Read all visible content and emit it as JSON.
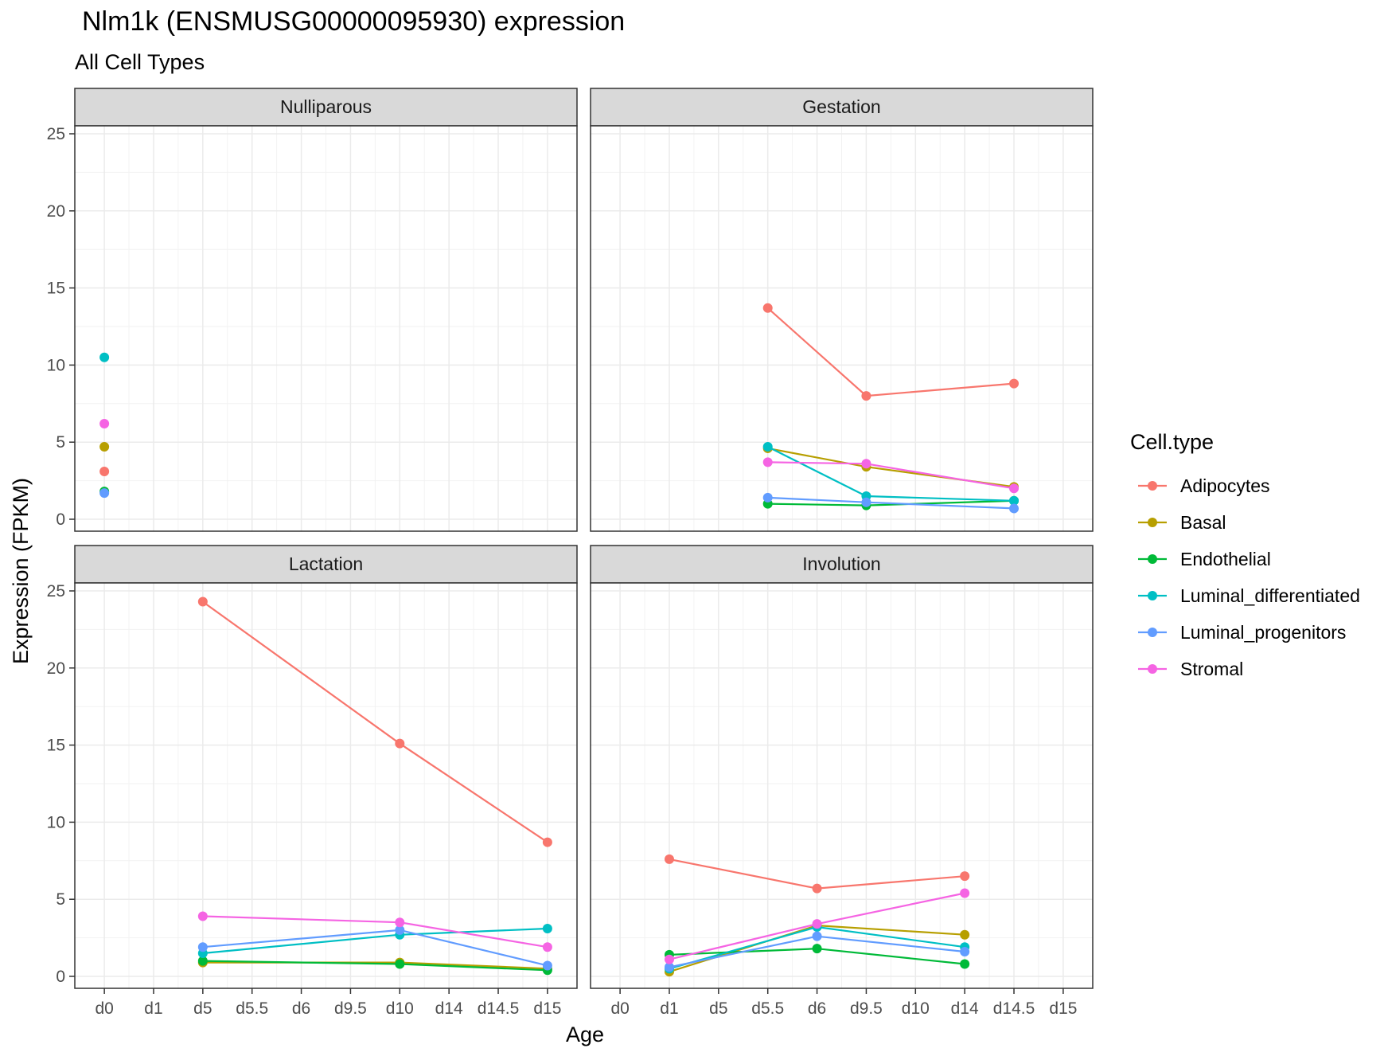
{
  "chart_data": {
    "type": "line",
    "title": "Nlm1k (ENSMUSG00000095930) expression",
    "subtitle": "All Cell Types",
    "xlabel": "Age",
    "ylabel": "Expression (FPKM)",
    "ylim": [
      0,
      25
    ],
    "y_ticks": [
      0,
      5,
      10,
      15,
      20,
      25
    ],
    "x_categories": [
      "d0",
      "d1",
      "d5",
      "d5.5",
      "d6",
      "d9.5",
      "d10",
      "d14",
      "d14.5",
      "d15"
    ],
    "grid": true,
    "legend": {
      "title": "Cell.type",
      "position": "right",
      "entries": [
        "Adipocytes",
        "Basal",
        "Endothelial",
        "Luminal_differentiated",
        "Luminal_progenitors",
        "Stromal"
      ]
    },
    "colors": {
      "Adipocytes": "#F8766D",
      "Basal": "#B79F00",
      "Endothelial": "#00BA38",
      "Luminal_differentiated": "#00BFC4",
      "Luminal_progenitors": "#619CFF",
      "Stromal": "#F564E3"
    },
    "panels": [
      {
        "name": "Nulliparous",
        "series": [
          {
            "name": "Adipocytes",
            "points": [
              [
                "d0",
                3.1
              ]
            ]
          },
          {
            "name": "Basal",
            "points": [
              [
                "d0",
                4.7
              ]
            ]
          },
          {
            "name": "Endothelial",
            "points": [
              [
                "d0",
                1.8
              ]
            ]
          },
          {
            "name": "Luminal_differentiated",
            "points": [
              [
                "d0",
                10.5
              ]
            ]
          },
          {
            "name": "Luminal_progenitors",
            "points": [
              [
                "d0",
                1.7
              ]
            ]
          },
          {
            "name": "Stromal",
            "points": [
              [
                "d0",
                6.2
              ]
            ]
          }
        ]
      },
      {
        "name": "Gestation",
        "series": [
          {
            "name": "Adipocytes",
            "points": [
              [
                "d5.5",
                13.7
              ],
              [
                "d9.5",
                8.0
              ],
              [
                "d14.5",
                8.8
              ]
            ]
          },
          {
            "name": "Basal",
            "points": [
              [
                "d5.5",
                4.6
              ],
              [
                "d9.5",
                3.4
              ],
              [
                "d14.5",
                2.1
              ]
            ]
          },
          {
            "name": "Endothelial",
            "points": [
              [
                "d5.5",
                1.0
              ],
              [
                "d9.5",
                0.9
              ],
              [
                "d14.5",
                1.2
              ]
            ]
          },
          {
            "name": "Luminal_differentiated",
            "points": [
              [
                "d5.5",
                4.7
              ],
              [
                "d9.5",
                1.5
              ],
              [
                "d14.5",
                1.2
              ]
            ]
          },
          {
            "name": "Luminal_progenitors",
            "points": [
              [
                "d5.5",
                1.4
              ],
              [
                "d9.5",
                1.1
              ],
              [
                "d14.5",
                0.7
              ]
            ]
          },
          {
            "name": "Stromal",
            "points": [
              [
                "d5.5",
                3.7
              ],
              [
                "d9.5",
                3.6
              ],
              [
                "d14.5",
                2.0
              ]
            ]
          }
        ]
      },
      {
        "name": "Lactation",
        "series": [
          {
            "name": "Adipocytes",
            "points": [
              [
                "d5",
                24.3
              ],
              [
                "d10",
                15.1
              ],
              [
                "d15",
                8.7
              ]
            ]
          },
          {
            "name": "Basal",
            "points": [
              [
                "d5",
                0.9
              ],
              [
                "d10",
                0.9
              ],
              [
                "d15",
                0.5
              ]
            ]
          },
          {
            "name": "Endothelial",
            "points": [
              [
                "d5",
                1.0
              ],
              [
                "d10",
                0.8
              ],
              [
                "d15",
                0.4
              ]
            ]
          },
          {
            "name": "Luminal_differentiated",
            "points": [
              [
                "d5",
                1.5
              ],
              [
                "d10",
                2.7
              ],
              [
                "d15",
                3.1
              ]
            ]
          },
          {
            "name": "Luminal_progenitors",
            "points": [
              [
                "d5",
                1.9
              ],
              [
                "d10",
                3.0
              ],
              [
                "d15",
                0.7
              ]
            ]
          },
          {
            "name": "Stromal",
            "points": [
              [
                "d5",
                3.9
              ],
              [
                "d10",
                3.5
              ],
              [
                "d15",
                1.9
              ]
            ]
          }
        ]
      },
      {
        "name": "Involution",
        "series": [
          {
            "name": "Adipocytes",
            "points": [
              [
                "d1",
                7.6
              ],
              [
                "d6",
                5.7
              ],
              [
                "d14",
                6.5
              ]
            ]
          },
          {
            "name": "Basal",
            "points": [
              [
                "d1",
                0.3
              ],
              [
                "d6",
                3.3
              ],
              [
                "d14",
                2.7
              ]
            ]
          },
          {
            "name": "Endothelial",
            "points": [
              [
                "d1",
                1.4
              ],
              [
                "d6",
                1.8
              ],
              [
                "d14",
                0.8
              ]
            ]
          },
          {
            "name": "Luminal_differentiated",
            "points": [
              [
                "d1",
                0.5
              ],
              [
                "d6",
                3.2
              ],
              [
                "d14",
                1.9
              ]
            ]
          },
          {
            "name": "Luminal_progenitors",
            "points": [
              [
                "d1",
                0.6
              ],
              [
                "d6",
                2.6
              ],
              [
                "d14",
                1.6
              ]
            ]
          },
          {
            "name": "Stromal",
            "points": [
              [
                "d1",
                1.1
              ],
              [
                "d6",
                3.4
              ],
              [
                "d14",
                5.4
              ]
            ]
          }
        ]
      }
    ]
  }
}
